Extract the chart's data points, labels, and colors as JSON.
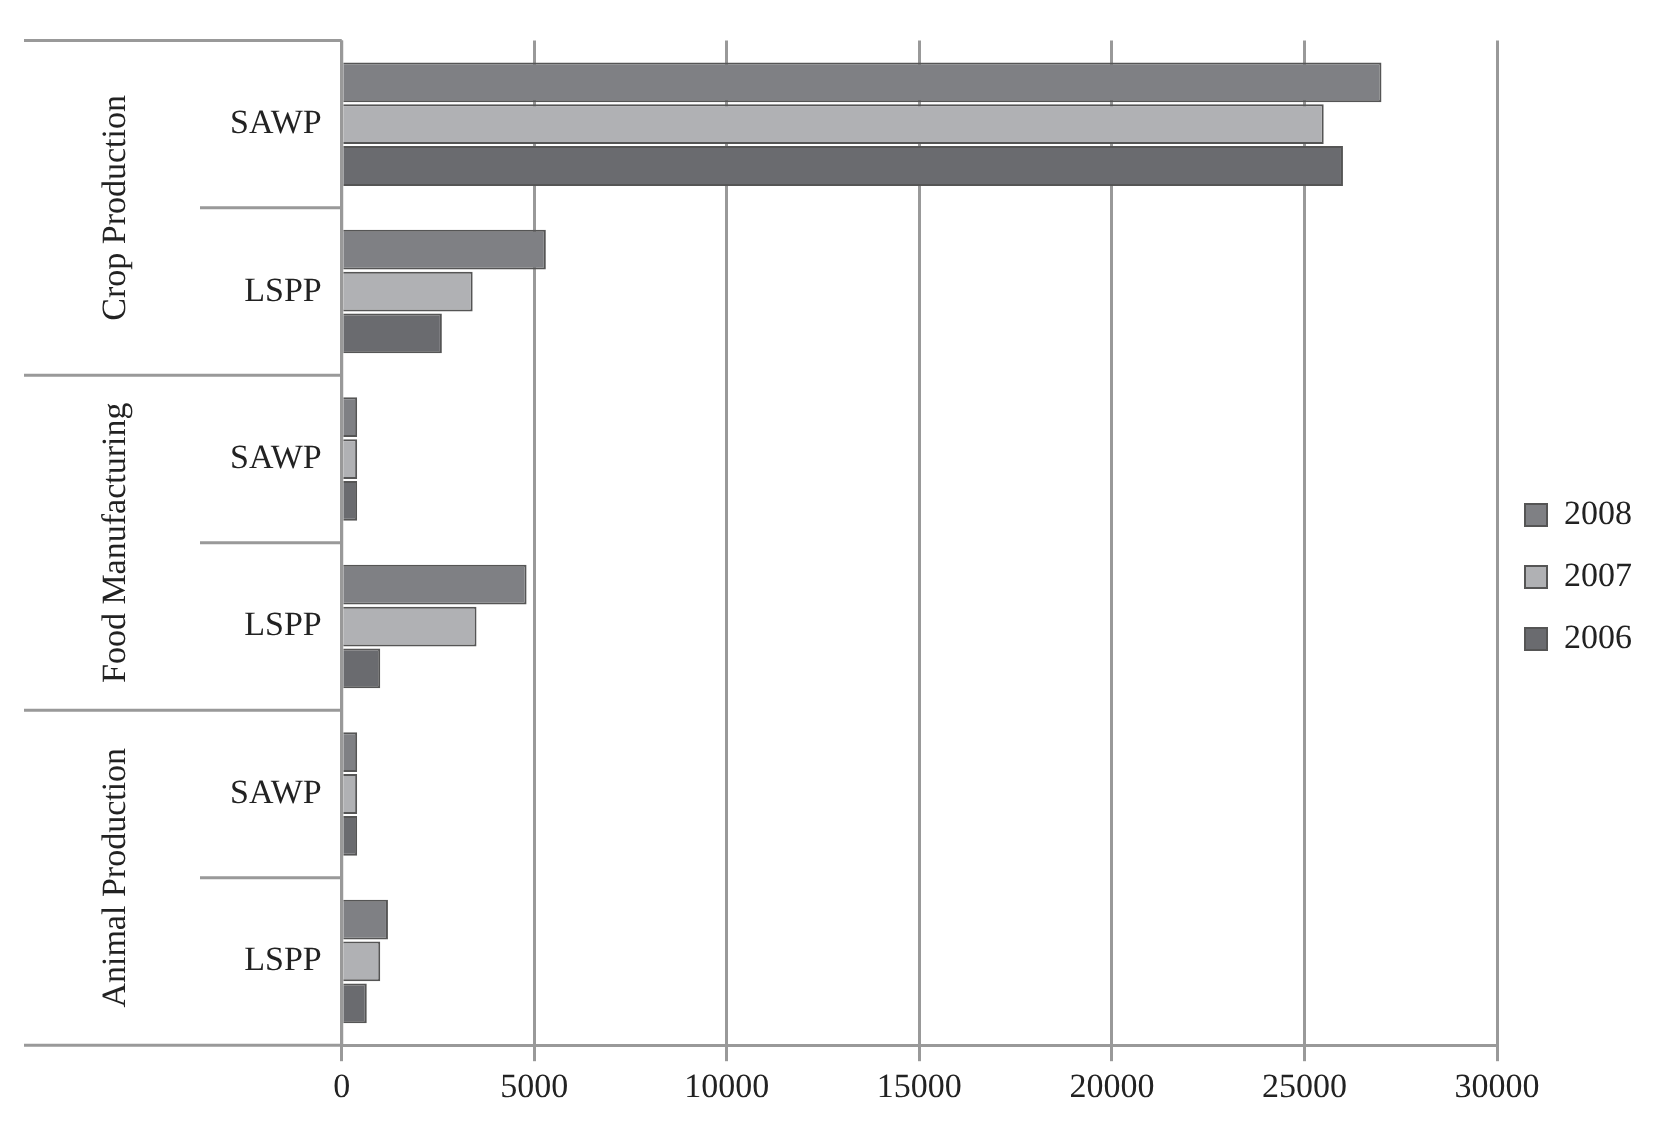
{
  "chart_data": {
    "type": "bar",
    "orientation": "horizontal",
    "categories": [
      "SAWP",
      "LSPP",
      "SAWP",
      "LSPP",
      "SAWP",
      "LSPP"
    ],
    "series": [
      {
        "name": "2008",
        "color": "#7f8084",
        "values": [
          27000,
          5300,
          400,
          4800,
          400,
          1200
        ]
      },
      {
        "name": "2007",
        "color": "#b0b1b4",
        "values": [
          25500,
          3400,
          400,
          3500,
          400,
          1000
        ]
      },
      {
        "name": "2006",
        "color": "#6a6b6f",
        "values": [
          26000,
          2600,
          400,
          1000,
          400,
          650
        ]
      }
    ],
    "xlim": [
      0,
      30000
    ],
    "xticks": [
      0,
      5000,
      10000,
      15000,
      20000,
      25000,
      30000
    ],
    "grid": "x",
    "legend": "right",
    "annotations": [
      "Crop Production",
      "Food Manufacturing",
      "Animal Production"
    ]
  }
}
